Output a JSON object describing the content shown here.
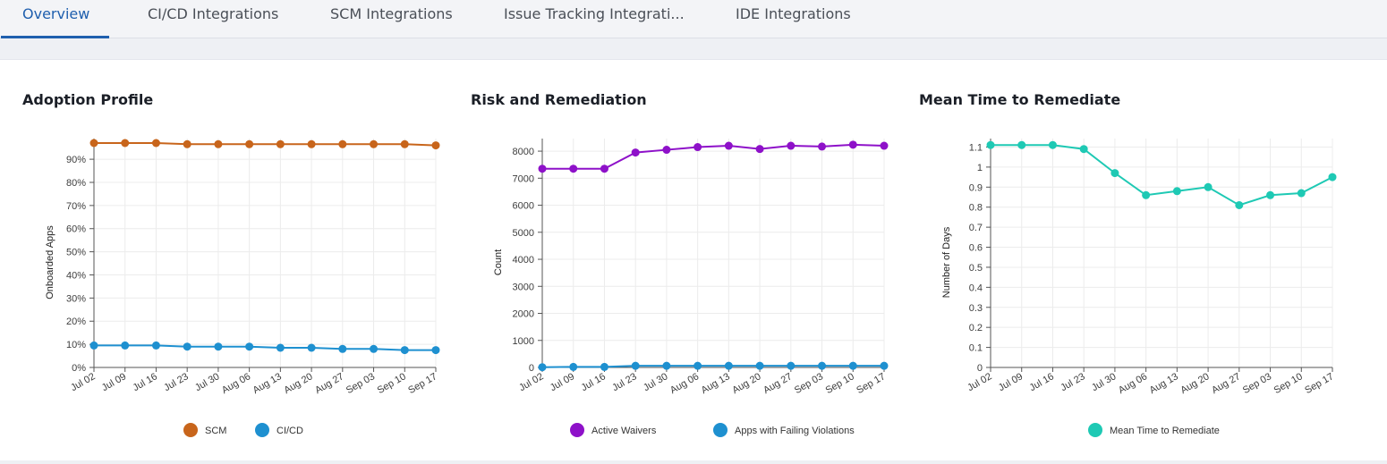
{
  "tabs": [
    {
      "label": "Overview",
      "active": true
    },
    {
      "label": "CI/CD Integrations",
      "active": false
    },
    {
      "label": "SCM Integrations",
      "active": false
    },
    {
      "label": "Issue Tracking Integrati...",
      "active": false
    },
    {
      "label": "IDE Integrations",
      "active": false
    }
  ],
  "colors": {
    "accent": "#1f5fae",
    "scm": "#c8651b",
    "cicd": "#1e90d0",
    "active_waivers": "#8e11c9",
    "failing_violations": "#1e90d0",
    "mttr": "#1ec9b4"
  },
  "cards": [
    {
      "title": "Adoption Profile"
    },
    {
      "title": "Risk and Remediation"
    },
    {
      "title": "Mean Time to Remediate"
    }
  ],
  "chart_data": [
    {
      "type": "line",
      "title": "Adoption Profile",
      "xlabel": "",
      "ylabel": "Onboarded Apps",
      "x": [
        "Jul 02",
        "Jul 09",
        "Jul 16",
        "Jul 23",
        "Jul 30",
        "Aug 06",
        "Aug 13",
        "Aug 20",
        "Aug 27",
        "Sep 03",
        "Sep 10",
        "Sep 17"
      ],
      "ylim": [
        0,
        97
      ],
      "yticks": [
        "0%",
        "10%",
        "20%",
        "30%",
        "40%",
        "50%",
        "60%",
        "70%",
        "80%",
        "90%"
      ],
      "ytick_values": [
        0,
        10,
        20,
        30,
        40,
        50,
        60,
        70,
        80,
        90
      ],
      "grid": true,
      "legend": "bottom",
      "series": [
        {
          "name": "SCM",
          "values": [
            97,
            97,
            97,
            96.5,
            96.5,
            96.5,
            96.5,
            96.5,
            96.5,
            96.5,
            96.5,
            96
          ]
        },
        {
          "name": "CI/CD",
          "values": [
            9.5,
            9.5,
            9.5,
            9,
            9,
            9,
            8.5,
            8.5,
            8,
            8,
            7.5,
            7.5
          ]
        }
      ]
    },
    {
      "type": "line",
      "title": "Risk and Remediation",
      "xlabel": "",
      "ylabel": "Count",
      "x": [
        "Jul 02",
        "Jul 09",
        "Jul 16",
        "Jul 23",
        "Jul 30",
        "Aug 06",
        "Aug 13",
        "Aug 20",
        "Aug 27",
        "Sep 03",
        "Sep 10",
        "Sep 17"
      ],
      "ylim": [
        0,
        8300
      ],
      "yticks": [
        "0",
        "1000",
        "2000",
        "3000",
        "4000",
        "5000",
        "6000",
        "7000",
        "8000"
      ],
      "ytick_values": [
        0,
        1000,
        2000,
        3000,
        4000,
        5000,
        6000,
        7000,
        8000
      ],
      "grid": true,
      "legend": "bottom",
      "series": [
        {
          "name": "Active Waivers",
          "values": [
            7350,
            7350,
            7350,
            7950,
            8050,
            8150,
            8200,
            8080,
            8200,
            8170,
            8240,
            8200
          ]
        },
        {
          "name": "Apps with Failing Violations",
          "values": [
            10,
            20,
            20,
            60,
            60,
            60,
            60,
            60,
            60,
            60,
            60,
            60
          ]
        }
      ]
    },
    {
      "type": "line",
      "title": "Mean Time to Remediate",
      "xlabel": "",
      "ylabel": "Number of Days",
      "x": [
        "Jul 02",
        "Jul 09",
        "Jul 16",
        "Jul 23",
        "Jul 30",
        "Aug 06",
        "Aug 13",
        "Aug 20",
        "Aug 27",
        "Sep 03",
        "Sep 10",
        "Sep 17"
      ],
      "ylim": [
        0,
        1.12
      ],
      "yticks": [
        "0",
        "0.1",
        "0.2",
        "0.3",
        "0.4",
        "0.5",
        "0.6",
        "0.7",
        "0.8",
        "0.9",
        "1",
        "1.1"
      ],
      "ytick_values": [
        0,
        0.1,
        0.2,
        0.3,
        0.4,
        0.5,
        0.6,
        0.7,
        0.8,
        0.9,
        1,
        1.1
      ],
      "grid": true,
      "legend": "bottom",
      "series": [
        {
          "name": "Mean Time to Remediate",
          "values": [
            1.11,
            1.11,
            1.11,
            1.09,
            0.97,
            0.86,
            0.88,
            0.9,
            0.81,
            0.86,
            0.87,
            0.95
          ]
        }
      ]
    }
  ]
}
